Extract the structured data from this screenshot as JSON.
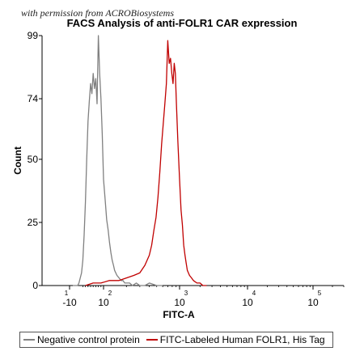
{
  "watermark": "with permission from ACROBiosystems",
  "chart_data": {
    "type": "histogram",
    "title": "FACS Analysis of anti-FOLR1 CAR expression",
    "xlabel": "FITC-A",
    "ylabel": "Count",
    "x_scale": "biexponential",
    "xlim": [
      -20,
      300000
    ],
    "ylim": [
      0,
      99
    ],
    "x_ticks": [
      {
        "value": -10,
        "base": "-10",
        "exp": "1"
      },
      {
        "value": 100,
        "base": "10",
        "exp": "2"
      },
      {
        "value": 1000,
        "base": "10",
        "exp": "3"
      },
      {
        "value": 10000,
        "base": "10",
        "exp": "4"
      },
      {
        "value": 100000,
        "base": "10",
        "exp": "5"
      }
    ],
    "y_ticks": [
      0,
      25,
      50,
      74,
      99
    ],
    "grid": false,
    "legend_position": "bottom",
    "series": [
      {
        "name": "Negative control protein",
        "color": "#808080",
        "x": [
          -6,
          0,
          5,
          10,
          15,
          20,
          25,
          30,
          35,
          40,
          45,
          50,
          55,
          60,
          65,
          70,
          75,
          80,
          85,
          90,
          95,
          100,
          105,
          110,
          115,
          120,
          125,
          130,
          135,
          140,
          150,
          160,
          170,
          180,
          190,
          200,
          220,
          240,
          270,
          300,
          350,
          400,
          500,
          600
        ],
        "y": [
          0,
          0,
          1,
          3,
          5,
          10,
          20,
          33,
          50,
          65,
          73,
          80,
          76,
          84,
          78,
          82,
          72,
          99,
          84,
          74,
          60,
          42,
          34,
          26,
          22,
          17,
          13,
          10,
          8,
          6,
          4,
          3,
          2,
          2,
          1,
          1,
          1,
          0,
          1,
          0,
          0,
          1,
          0,
          0
        ]
      },
      {
        "name": "FITC-Labeled Human FOLR1, His Tag",
        "color": "#c00000",
        "x": [
          30,
          60,
          90,
          120,
          160,
          200,
          250,
          300,
          350,
          400,
          430,
          460,
          490,
          520,
          550,
          580,
          610,
          640,
          670,
          700,
          730,
          760,
          790,
          820,
          850,
          880,
          910,
          950,
          1000,
          1050,
          1100,
          1150,
          1200,
          1250,
          1300,
          1400,
          1500,
          1600,
          1800,
          2000,
          2200,
          2500
        ],
        "y": [
          0,
          1,
          1,
          2,
          2,
          3,
          4,
          5,
          8,
          12,
          16,
          22,
          27,
          35,
          45,
          56,
          64,
          72,
          80,
          97,
          88,
          90,
          84,
          80,
          88,
          84,
          72,
          57,
          42,
          30,
          24,
          16,
          12,
          9,
          6,
          4,
          3,
          2,
          1,
          1,
          0,
          0
        ]
      }
    ]
  }
}
